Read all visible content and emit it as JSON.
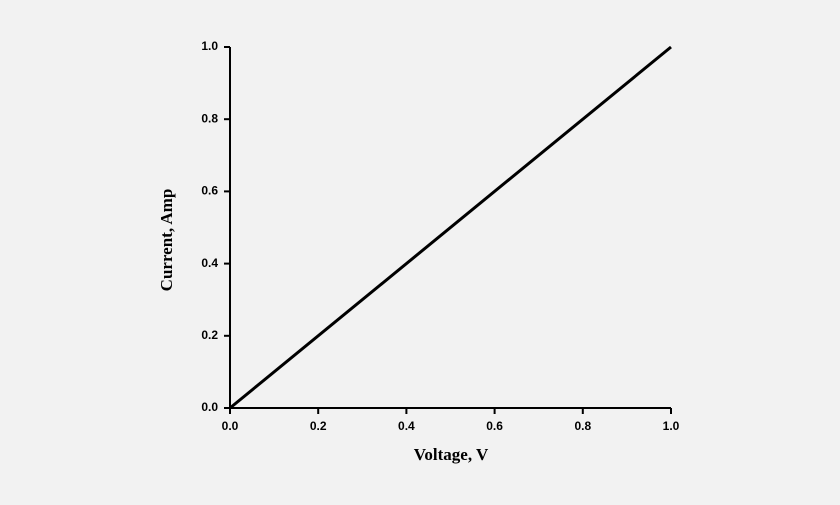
{
  "chart_data": {
    "type": "line",
    "x": [
      0,
      1
    ],
    "values": [
      0,
      1
    ],
    "color": "#000000",
    "xlabel": "Voltage, V",
    "ylabel": "Current, Amp",
    "xlim": [
      0,
      1
    ],
    "ylim": [
      0,
      1
    ],
    "xticks": [
      {
        "value": 0,
        "label": "0.0"
      },
      0.2,
      0.4,
      0.6,
      0.8,
      {
        "value": 1,
        "label": "1.0"
      }
    ],
    "yticks": [
      {
        "value": 0,
        "label": "0.0"
      },
      0.2,
      0.4,
      0.6,
      0.8,
      {
        "value": 1,
        "label": "1.0"
      }
    ],
    "grid": false
  }
}
